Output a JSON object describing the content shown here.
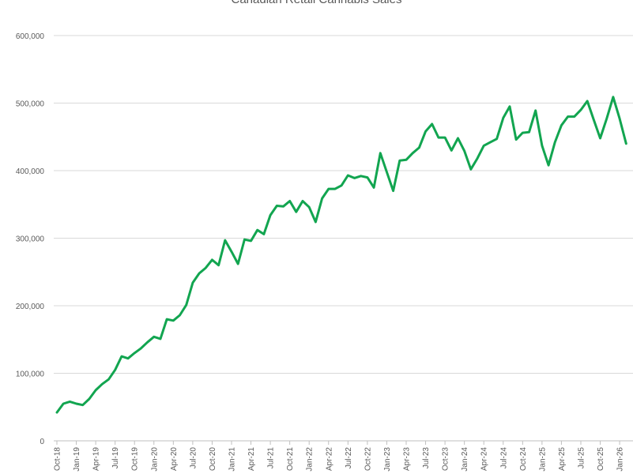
{
  "chart_data": {
    "type": "line",
    "title": "Canadian Retail Cannabis Sales",
    "xlabel": "",
    "ylabel": "",
    "ylim": [
      0,
      600000
    ],
    "yticks": [
      "0",
      "100,000",
      "200,000",
      "300,000",
      "400,000",
      "500,000",
      "600,000"
    ],
    "grid": true,
    "legend": "none",
    "line_color": "#12A550",
    "xtick_labels": [
      "Oct-18",
      "Jan-19",
      "Apr-19",
      "Jul-19",
      "Oct-19",
      "Jan-20",
      "Apr-20",
      "Jul-20",
      "Oct-20",
      "Jan-21",
      "Apr-21",
      "Jul-21",
      "Oct-21",
      "Jan-22",
      "Apr-22",
      "Jul-22",
      "Oct-22",
      "Jan-23",
      "Apr-23",
      "Jul-23",
      "Oct-23",
      "Jan-24",
      "Apr-24",
      "Jul-24",
      "Oct-24",
      "Jan-25",
      "Apr-25",
      "Jul-25",
      "Oct-25",
      "Jan-26"
    ],
    "series": [
      {
        "name": "Retail Cannabis Sales",
        "start": "Oct-18",
        "frequency": "monthly",
        "values": [
          42000,
          55000,
          58000,
          55000,
          53000,
          62000,
          75000,
          84000,
          91000,
          105000,
          125000,
          122000,
          130000,
          137000,
          146000,
          154000,
          151000,
          180000,
          178000,
          186000,
          201000,
          234000,
          248000,
          256000,
          268000,
          260000,
          297000,
          280000,
          262000,
          298000,
          296000,
          312000,
          306000,
          334000,
          348000,
          347000,
          355000,
          339000,
          355000,
          346000,
          324000,
          359000,
          373000,
          373000,
          378000,
          393000,
          389000,
          392000,
          390000,
          375000,
          426000,
          398000,
          370000,
          415000,
          416000,
          426000,
          434000,
          458000,
          469000,
          449000,
          449000,
          430000,
          448000,
          429000,
          402000,
          418000,
          437000,
          442000,
          447000,
          478000,
          495000,
          446000,
          456000,
          457000,
          489000,
          437000,
          408000,
          442000,
          467000,
          480000,
          480000,
          490000,
          503000,
          475000,
          448000,
          477000,
          509000,
          477000,
          440000
        ]
      }
    ]
  }
}
